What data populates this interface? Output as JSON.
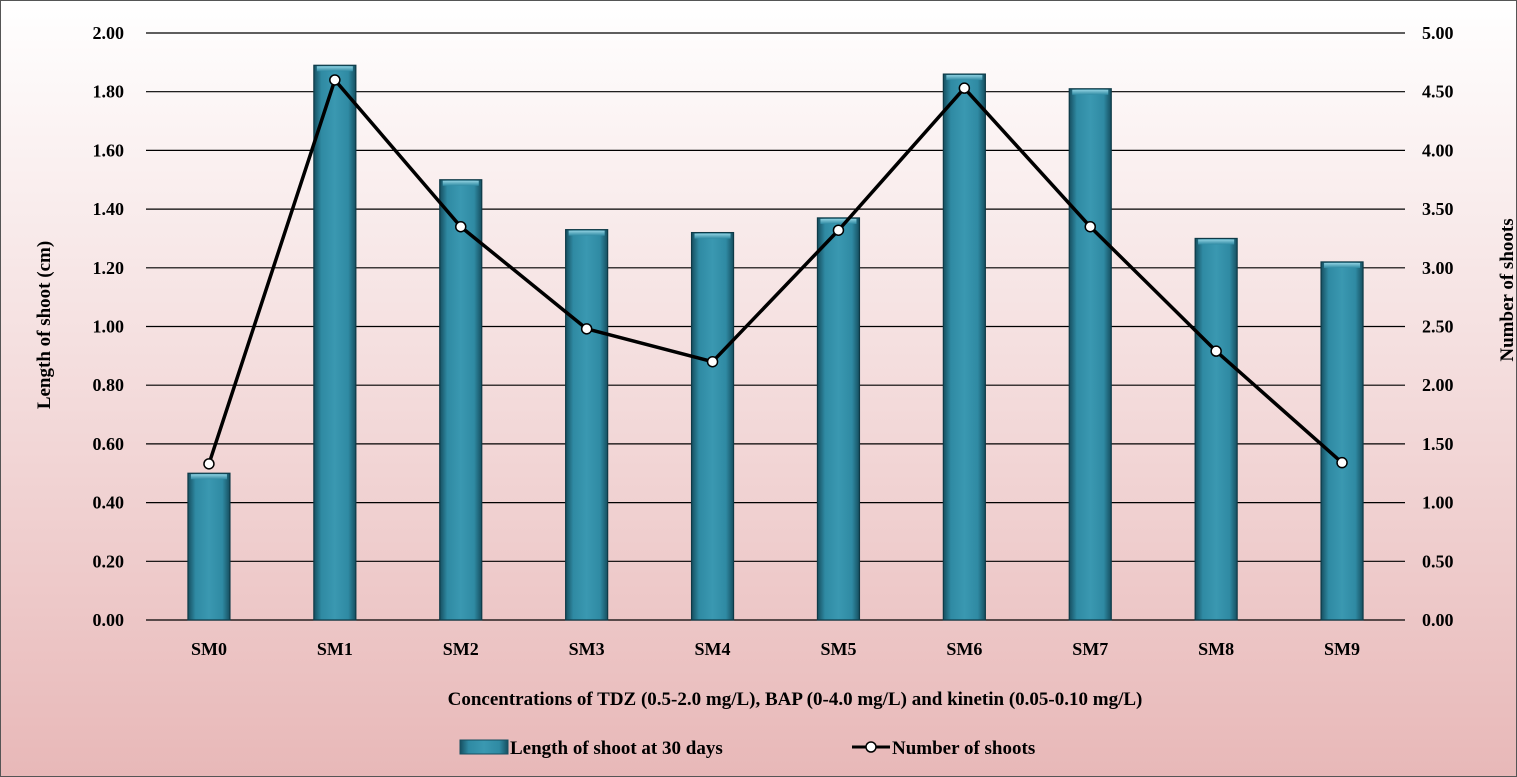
{
  "chart_data": {
    "type": "bar",
    "categories": [
      "SM0",
      "SM1",
      "SM2",
      "SM3",
      "SM4",
      "SM5",
      "SM6",
      "SM7",
      "SM8",
      "SM9"
    ],
    "series": [
      {
        "name": "Length of shoot at 30 days",
        "type": "bar",
        "axis": "left",
        "values": [
          0.5,
          1.89,
          1.5,
          1.33,
          1.32,
          1.37,
          1.86,
          1.81,
          1.3,
          1.22
        ]
      },
      {
        "name": "Number of shoots",
        "type": "line",
        "axis": "right",
        "values": [
          1.33,
          4.6,
          3.35,
          2.48,
          2.2,
          3.32,
          4.53,
          3.35,
          2.29,
          1.34
        ]
      }
    ],
    "title": "",
    "xlabel": "Concentrations of TDZ (0.5-2.0 mg/L), BAP (0-4.0 mg/L) and kinetin (0.05-0.10 mg/L)",
    "ylabel": "Length of shoot (cm)",
    "y2label": "Number of shoots",
    "ylim": [
      0,
      2.0
    ],
    "y2lim": [
      0,
      5.0
    ],
    "yticks": [
      "0.00",
      "0.20",
      "0.40",
      "0.60",
      "0.80",
      "1.00",
      "1.20",
      "1.40",
      "1.60",
      "1.80",
      "2.00"
    ],
    "y2ticks": [
      "0.00",
      "0.50",
      "1.00",
      "1.50",
      "2.00",
      "2.50",
      "3.00",
      "3.50",
      "4.00",
      "4.50",
      "5.00"
    ],
    "grid": true,
    "legend": "bottom-center",
    "colors": {
      "bar": "#2f8aa3",
      "line": "#000000",
      "marker_fill": "#ffffff",
      "bg_top": "#ffffff",
      "bg_bottom": "#e8b8b8"
    }
  }
}
